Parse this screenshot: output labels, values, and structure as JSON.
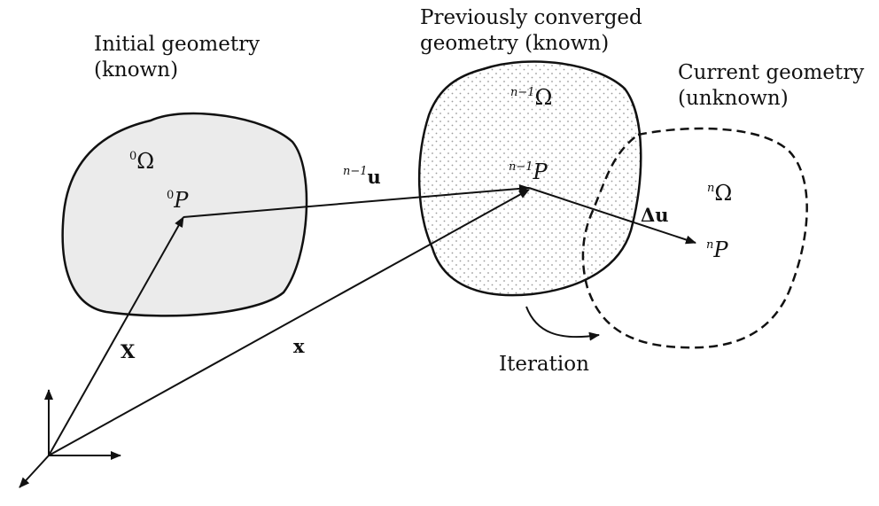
{
  "captions": {
    "initial_line1": "Initial geometry",
    "initial_line2": "(known)",
    "previous_line1": "Previously converged",
    "previous_line2": "geometry (known)",
    "current_line1": "Current geometry",
    "current_line2": "(unknown)",
    "iteration": "Iteration"
  },
  "symbols": {
    "omega0_sup": "0",
    "omega_prev_sup": "n−1",
    "omega_curr_sup": "n",
    "omega": "Ω",
    "p0_sup": "0",
    "p_prev_sup": "n−1",
    "p_curr_sup": "n",
    "p": "P",
    "u_sup": "n−1",
    "u": "u",
    "delta_u": "Δu",
    "X_upper": "X",
    "x_lower": "x"
  },
  "colors": {
    "stroke": "#111111",
    "initial_fill": "#ebebeb",
    "dots": "#9a9a9a"
  }
}
